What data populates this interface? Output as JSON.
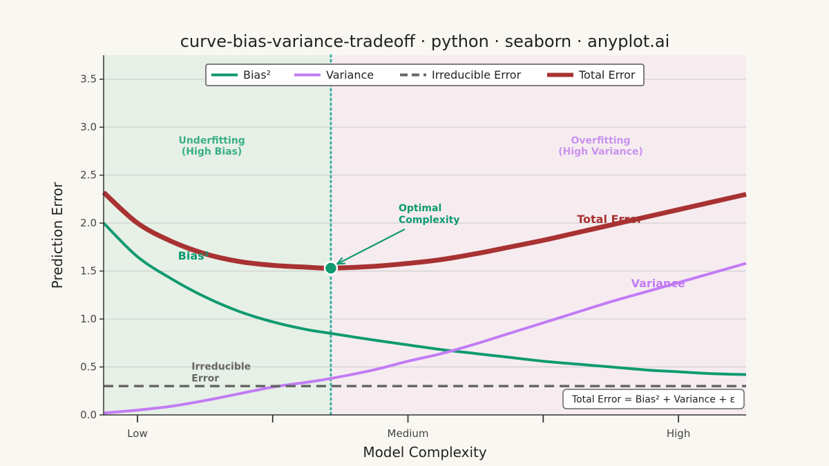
{
  "chart_data": {
    "type": "line",
    "title": "curve-bias-variance-tradeoff · python · seaborn · anyplot.ai",
    "xlabel": "Model Complexity",
    "ylabel": "Prediction Error",
    "xlim": [
      0.0,
      9.5
    ],
    "ylim": [
      0.0,
      3.75
    ],
    "x_ticks": [
      0.5,
      2.5,
      4.5,
      6.5,
      8.5
    ],
    "x_tick_labels": [
      "Low",
      "",
      "Medium",
      "",
      "High"
    ],
    "y_ticks": [
      0.0,
      0.5,
      1.0,
      1.5,
      2.0,
      2.5,
      3.0,
      3.5
    ],
    "y_tick_labels": [
      "0.0",
      "0.5",
      "1.0",
      "1.5",
      "2.0",
      "2.5",
      "3.0",
      "3.5"
    ],
    "grid": "horizontal",
    "legend_position": "top-center",
    "series": [
      {
        "name": "Bias²",
        "color": "#0f9a70",
        "style": "solid",
        "x": [
          0.0,
          0.5,
          1.0,
          1.5,
          2.0,
          2.5,
          3.0,
          3.36,
          4.0,
          4.5,
          5.0,
          5.5,
          6.0,
          6.5,
          7.0,
          7.5,
          8.0,
          8.5,
          9.0,
          9.5
        ],
        "y": [
          2.0,
          1.65,
          1.42,
          1.23,
          1.08,
          0.97,
          0.89,
          0.85,
          0.78,
          0.73,
          0.68,
          0.64,
          0.6,
          0.56,
          0.53,
          0.5,
          0.47,
          0.45,
          0.43,
          0.42
        ]
      },
      {
        "name": "Variance",
        "color": "#c27bf5",
        "style": "solid",
        "x": [
          0.0,
          0.5,
          1.0,
          1.5,
          2.0,
          2.5,
          3.0,
          3.36,
          4.0,
          4.5,
          5.0,
          5.5,
          6.0,
          6.5,
          7.0,
          7.5,
          8.0,
          8.5,
          9.0,
          9.5
        ],
        "y": [
          0.02,
          0.05,
          0.09,
          0.15,
          0.22,
          0.29,
          0.34,
          0.38,
          0.47,
          0.56,
          0.64,
          0.74,
          0.85,
          0.96,
          1.07,
          1.18,
          1.28,
          1.38,
          1.48,
          1.58
        ]
      },
      {
        "name": "Irreducible Error",
        "color": "#666666",
        "style": "dashed",
        "x": [
          0.0,
          9.5
        ],
        "y": [
          0.3,
          0.3
        ]
      },
      {
        "name": "Total Error",
        "color": "#a83232",
        "style": "solid",
        "x": [
          0.0,
          0.5,
          1.0,
          1.5,
          2.0,
          2.5,
          3.0,
          3.36,
          4.0,
          4.5,
          5.0,
          5.5,
          6.0,
          6.5,
          7.0,
          7.5,
          8.0,
          8.5,
          9.0,
          9.5
        ],
        "y": [
          2.32,
          2.0,
          1.81,
          1.68,
          1.6,
          1.56,
          1.54,
          1.53,
          1.55,
          1.58,
          1.62,
          1.68,
          1.75,
          1.82,
          1.9,
          1.98,
          2.06,
          2.14,
          2.22,
          2.3
        ]
      }
    ],
    "regions": [
      {
        "label_lines": [
          "Underfitting",
          "(High Bias)"
        ],
        "x_range": [
          0.0,
          3.36
        ],
        "color": "#e6f0e6",
        "label_color": "#3aae88"
      },
      {
        "label_lines": [
          "Overfitting",
          "(High Variance)"
        ],
        "x_range": [
          3.36,
          9.5
        ],
        "color": "#f6ecf0",
        "label_color": "#c893ee"
      }
    ],
    "optimal": {
      "x": 3.36,
      "y": 1.53,
      "label_lines": [
        "Optimal",
        "Complexity"
      ],
      "color": "#0f9a70",
      "line_color": "#3aaea0"
    },
    "curve_labels": [
      {
        "text": "Bias²",
        "x": 1.1,
        "y": 1.62,
        "color": "#0f9a70"
      },
      {
        "text": "Total Error",
        "x": 7.0,
        "y": 2.0,
        "color": "#a83232"
      },
      {
        "text": "Variance",
        "x": 7.8,
        "y": 1.33,
        "color": "#c27bf5"
      }
    ],
    "irreducible_label": {
      "lines": [
        "Irreducible",
        "Error"
      ],
      "x": 1.3,
      "y": 0.47,
      "color": "#666666"
    },
    "formula": "Total Error = Bias² + Variance + ε"
  }
}
